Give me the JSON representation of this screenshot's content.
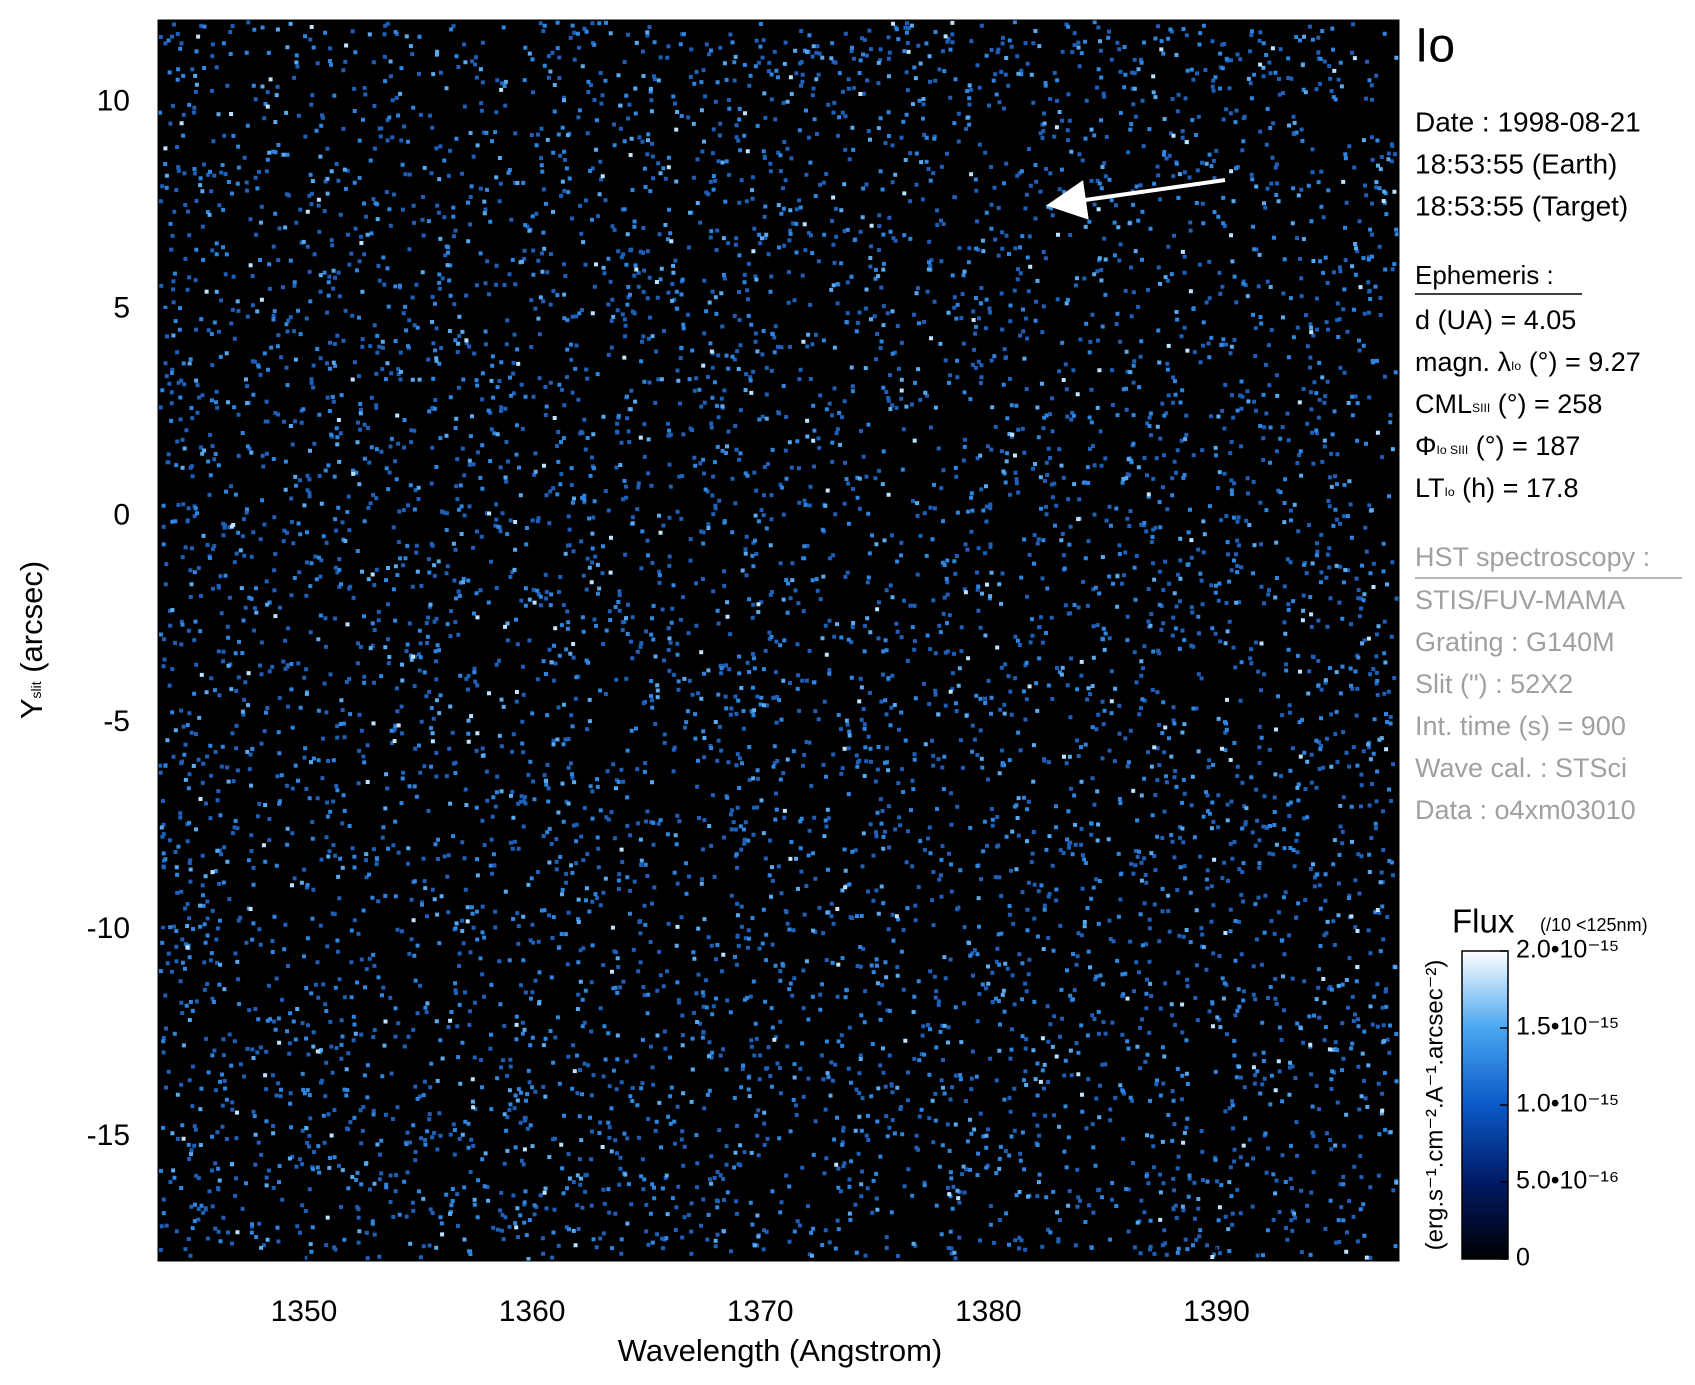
{
  "chart_data": {
    "type": "spectrogram",
    "x_label": "Wavelength (Angstrom)",
    "y_label": [
      {
        "text": "Y"
      },
      {
        "sub": "slit"
      },
      {
        "text": " (arcsec)"
      }
    ],
    "xlim": [
      1343.6,
      1398
    ],
    "xticks": [
      1350,
      1360,
      1370,
      1380,
      1390
    ],
    "ylim": [
      -18,
      12
    ],
    "yticks": [
      -15,
      -10,
      -5,
      0,
      5,
      10
    ],
    "colorbar": {
      "title": "Flux",
      "note": "(/10 <125nm)",
      "label": "(erg.s⁻¹.cm⁻².A⁻¹.arcsec⁻²)",
      "clim": [
        0,
        2e-15
      ],
      "colormap": [
        "#000000",
        "#001a66",
        "#0a5ac8",
        "#4aa6f0",
        "#ffffff"
      ],
      "ticks": [
        0,
        {
          "value": 5e-16,
          "label": "5.0•10⁻¹⁶"
        },
        {
          "value": 1e-15,
          "label": "1.0•10⁻¹⁵"
        },
        {
          "value": 1.5e-15,
          "label": "1.5•10⁻¹⁵"
        },
        {
          "value": 2e-15,
          "label": "2.0•10⁻¹⁵"
        }
      ]
    },
    "info": {
      "target": "Io",
      "date": [
        "Date : 1998-08-21",
        "18:53:55 (Earth)",
        "18:53:55 (Target)"
      ],
      "ephemeris_title": "Ephemeris :",
      "ephemeris": [
        [
          {
            "text": "d (UA)     = 4.05"
          }
        ],
        [
          {
            "text": "magn. λ"
          },
          {
            "sub": "Io"
          },
          {
            "text": " (°)  = 9.27"
          }
        ],
        [
          {
            "text": "CML"
          },
          {
            "sub": "SIII"
          },
          {
            "text": " (°) = 258"
          }
        ],
        [
          {
            "text": "Φ"
          },
          {
            "sub": "Io SIII"
          },
          {
            "text": " (°) = 187"
          }
        ],
        [
          {
            "text": "LT"
          },
          {
            "sub": "Io"
          },
          {
            "text": " (h) = 17.8"
          }
        ]
      ],
      "instrument_title": "HST spectroscopy :",
      "instrument": [
        "STIS/FUV-MAMA",
        "Grating : G140M",
        "Slit (\") : 52X2",
        "Int. time (s) = 900",
        "Wave cal. : STSci",
        "Data : o4xm03010"
      ]
    }
  }
}
